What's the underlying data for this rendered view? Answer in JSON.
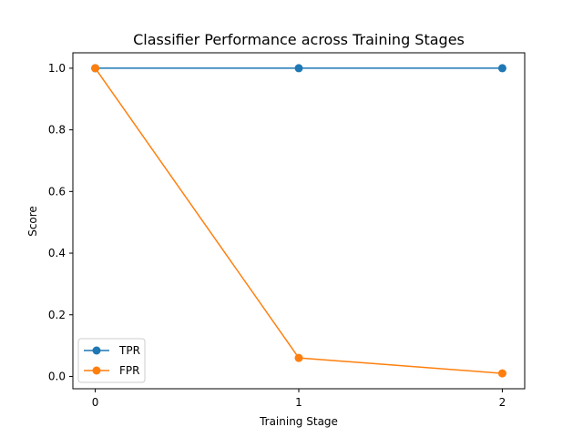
{
  "chart_data": {
    "type": "line",
    "title": "Classifier Performance across Training Stages",
    "xlabel": "Training Stage",
    "ylabel": "Score",
    "x": [
      0,
      1,
      2
    ],
    "xticks": [
      "0",
      "1",
      "2"
    ],
    "yticks": [
      "0.0",
      "0.2",
      "0.4",
      "0.6",
      "0.8",
      "1.0"
    ],
    "xlim": [
      -0.11,
      2.11
    ],
    "ylim": [
      -0.04,
      1.05
    ],
    "grid": false,
    "legend_position": "lower-left",
    "series": [
      {
        "name": "TPR",
        "values": [
          1.0,
          1.0,
          1.0
        ],
        "color": "#1f77b4",
        "marker": "circle"
      },
      {
        "name": "FPR",
        "values": [
          1.0,
          0.06,
          0.01
        ],
        "color": "#ff7f0e",
        "marker": "circle"
      }
    ]
  }
}
